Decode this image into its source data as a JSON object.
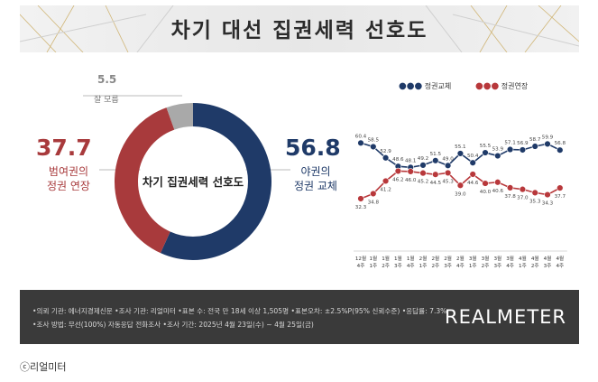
{
  "title": "차기 대선 집권세력 선호도",
  "donut": {
    "center_label": "차기 집권세력 선호도",
    "slices": [
      {
        "label_line1": "야권의",
        "label_line2": "정권 교체",
        "value": 56.8,
        "value_text": "56.8",
        "color": "#1f3a68"
      },
      {
        "label_line1": "범여권의",
        "label_line2": "정권 연장",
        "value": 37.7,
        "value_text": "37.7",
        "color": "#a83a3c"
      },
      {
        "label_line1": "잘 모름",
        "label_line2": "",
        "value": 5.5,
        "value_text": "5.5",
        "color": "#a9a9a9"
      }
    ]
  },
  "chart_data": {
    "type": "line",
    "categories": [
      "12월 4주",
      "1월 1주",
      "1월 2주",
      "1월 3주",
      "1월 4주",
      "2월 1주",
      "2월 2주",
      "2월 3주",
      "2월 4주",
      "3월 1주",
      "3월 2주",
      "3월 3주",
      "3월 4주",
      "4월 1주",
      "4월 2주",
      "4월 3주",
      "4월 4주"
    ],
    "category_lines": [
      [
        "12월",
        "4주"
      ],
      [
        "1월",
        "1주"
      ],
      [
        "1월",
        "2주"
      ],
      [
        "1월",
        "3주"
      ],
      [
        "1월",
        "4주"
      ],
      [
        "2월",
        "1주"
      ],
      [
        "2월",
        "2주"
      ],
      [
        "2월",
        "3주"
      ],
      [
        "2월",
        "4주"
      ],
      [
        "3월",
        "1주"
      ],
      [
        "3월",
        "2주"
      ],
      [
        "3월",
        "3주"
      ],
      [
        "3월",
        "4주"
      ],
      [
        "4월",
        "1주"
      ],
      [
        "4월",
        "2주"
      ],
      [
        "4월",
        "3주"
      ],
      [
        "4월",
        "4주"
      ]
    ],
    "series": [
      {
        "name": "정권교체",
        "color": "#1f3a68",
        "values": [
          60.4,
          58.5,
          52.9,
          48.6,
          48.1,
          49.2,
          51.5,
          49.0,
          55.1,
          50.4,
          55.5,
          53.9,
          57.1,
          56.9,
          58.7,
          59.9,
          56.8
        ]
      },
      {
        "name": "정권연장",
        "color": "#b8383b",
        "values": [
          32.3,
          34.8,
          41.2,
          46.2,
          46.0,
          45.2,
          44.5,
          45.3,
          39.0,
          44.6,
          40.0,
          40.6,
          37.8,
          37.0,
          35.3,
          34.3,
          37.7
        ]
      }
    ],
    "ylim": [
      25,
      66
    ]
  },
  "footer": {
    "line1": "•의뢰 기관: 에너지경제신문  •조사 기관: 리얼미터  •표본 수: 전국 만 18세 이상 1,505명  •표본오차: ±2.5%P(95% 신뢰수준)  •응답률: 7.3%",
    "line2": "•조사 방법: 무선(100%) 자동응답 전화조사  •조사 기간: 2025년 4월 23일(수) ~ 4월 25일(금)",
    "brand": "REALMETER"
  },
  "caption": "ⓒ리얼미터"
}
